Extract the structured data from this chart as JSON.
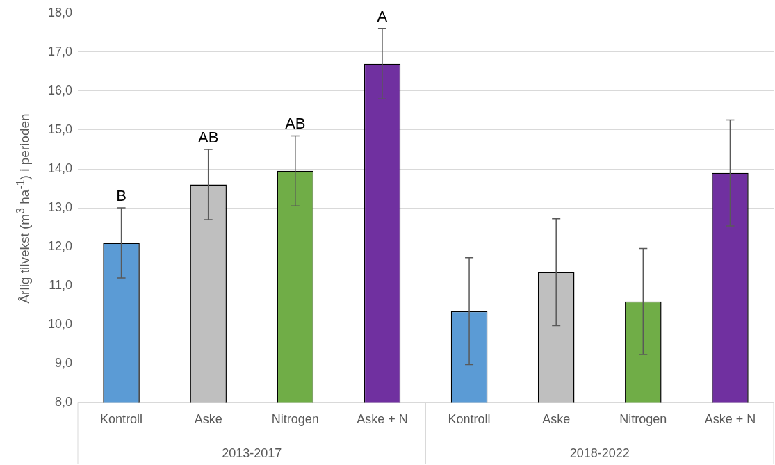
{
  "chart_data": {
    "type": "bar",
    "ylabel": "Årlig tilvekst (m$^{3}$ ha$^{-1}$) i perioden",
    "categories": [
      "Kontroll",
      "Aske",
      "Nitrogen",
      "Aske + N",
      "Kontroll",
      "Aske",
      "Nitrogen",
      "Aske + N"
    ],
    "values": [
      12.1,
      13.6,
      13.95,
      16.7,
      10.35,
      11.35,
      10.6,
      13.9
    ],
    "colors": [
      "#5b9bd5",
      "#bfbfbf",
      "#70ad47",
      "#7030a0",
      "#5b9bd5",
      "#bfbfbf",
      "#70ad47",
      "#7030a0"
    ],
    "errors": [
      0.9,
      0.9,
      0.9,
      0.9,
      1.37,
      1.37,
      1.36,
      1.36
    ],
    "value_labels": [
      "B",
      "AB",
      "AB",
      "A",
      null,
      null,
      null,
      null
    ],
    "annotations": [
      "2013-2017",
      "2018-2022"
    ],
    "ylim": [
      8,
      18
    ],
    "yticks": [
      {
        "value": 8,
        "label": "8,0"
      },
      {
        "value": 9,
        "label": "9,0"
      },
      {
        "value": 10,
        "label": "10,0"
      },
      {
        "value": 11,
        "label": "11,0"
      },
      {
        "value": 12,
        "label": "12,0"
      },
      {
        "value": 13,
        "label": "13,0"
      },
      {
        "value": 14,
        "label": "14,0"
      },
      {
        "value": 15,
        "label": "15,0"
      },
      {
        "value": 16,
        "label": "16,0"
      },
      {
        "value": 17,
        "label": "17,0"
      },
      {
        "value": 18,
        "label": "18,0"
      }
    ],
    "grid": "y",
    "legend": false
  }
}
